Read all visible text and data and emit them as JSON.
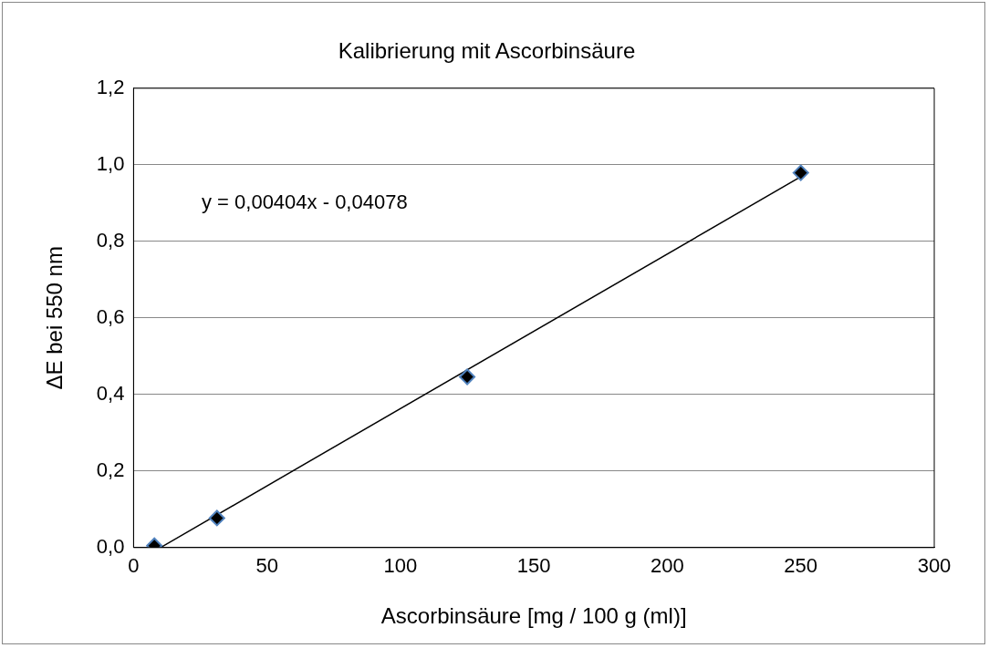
{
  "chart_data": {
    "type": "scatter",
    "title": "Kalibrierung mit Ascorbinsäure",
    "xlabel": "Ascorbinsäure [mg / 100 g (ml)]",
    "ylabel": "ΔE bei 550 nm",
    "series": [
      {
        "type": "scatter",
        "color": "#000000",
        "x": [
          7.8,
          31.25,
          125,
          250
        ],
        "values": [
          0.005,
          0.077,
          0.446,
          0.979
        ]
      },
      {
        "type": "line",
        "color": "#000000",
        "marker": "none",
        "x": [
          10.09,
          250
        ],
        "values": [
          0,
          0.969
        ]
      }
    ],
    "xlim": [
      0,
      300
    ],
    "xticks": [
      0,
      50,
      100,
      150,
      200,
      250,
      300
    ],
    "ylim": [
      0,
      1.2
    ],
    "yticks": [
      {
        "value": 0,
        "label": "0,0"
      },
      {
        "value": 0.2,
        "label": "0,2"
      },
      {
        "value": 0.4,
        "label": "0,4"
      },
      {
        "value": 0.6,
        "label": "0,6"
      },
      {
        "value": 0.8,
        "label": "0,8"
      },
      {
        "value": 1,
        "label": "1,0"
      },
      {
        "value": 1.2,
        "label": "1,2"
      }
    ],
    "grid": "y",
    "legend": false,
    "marker": "diamond",
    "annotations": [
      "y = 0,00404x - 0,04078"
    ]
  }
}
